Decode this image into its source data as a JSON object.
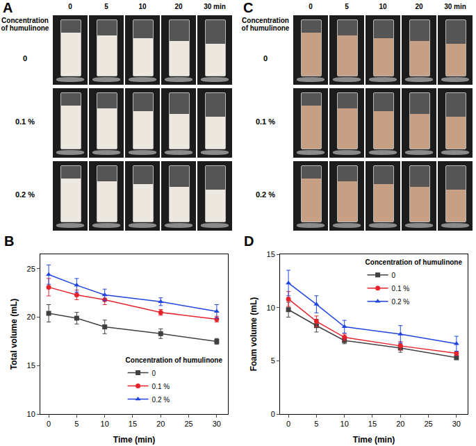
{
  "photo_panels": [
    {
      "letter": "A",
      "row_header": "Concentration of humulinone",
      "times": [
        "0",
        "5",
        "10",
        "20",
        "30 min"
      ],
      "rows": [
        "0",
        "0.1 %",
        "0.2 %"
      ]
    },
    {
      "letter": "C",
      "row_header": "Concentration of humulinone",
      "times": [
        "0",
        "5",
        "10",
        "20",
        "30 min"
      ],
      "rows": [
        "0",
        "0.1 %",
        "0.2 %"
      ]
    }
  ],
  "chart_data": [
    {
      "letter": "B",
      "type": "line",
      "x_label": "Time (min)",
      "y_label": "Total volume (mL)",
      "x": [
        0,
        5,
        10,
        20,
        30
      ],
      "xlim": [
        -1.5,
        32
      ],
      "xticks": [
        0,
        5,
        10,
        15,
        20,
        25,
        30
      ],
      "ylim": [
        10,
        26.5
      ],
      "yticks": [
        10,
        15,
        20,
        25
      ],
      "grid": false,
      "legend": "lower right",
      "legend_title": "Concentration of humulinone",
      "series": [
        {
          "name": "0",
          "color": "#404040",
          "marker": "square",
          "values": [
            20.4,
            19.9,
            19.0,
            18.3,
            17.5
          ],
          "errors": [
            0.9,
            0.6,
            0.7,
            0.5,
            0.3
          ]
        },
        {
          "name": "0.1 %",
          "color": "#e8222b",
          "marker": "circle",
          "values": [
            23.1,
            22.3,
            21.8,
            20.5,
            19.8
          ],
          "errors": [
            0.9,
            0.5,
            0.5,
            0.3,
            0.3
          ]
        },
        {
          "name": "0.2 %",
          "color": "#1f45e0",
          "marker": "triangle-up",
          "values": [
            24.4,
            23.3,
            22.3,
            21.6,
            20.6
          ],
          "errors": [
            1.0,
            0.7,
            0.6,
            0.4,
            0.7
          ]
        }
      ]
    },
    {
      "letter": "D",
      "type": "line",
      "x_label": "Time (min)",
      "y_label": "Foam volume (mL)",
      "x": [
        0,
        5,
        10,
        20,
        30
      ],
      "xlim": [
        -1.5,
        32
      ],
      "xticks": [
        0,
        5,
        10,
        15,
        20,
        25,
        30
      ],
      "ylim": [
        0,
        15
      ],
      "yticks": [
        0,
        5,
        10,
        15
      ],
      "grid": false,
      "legend": "upper right",
      "legend_title": "Concentration of humulinone",
      "series": [
        {
          "name": "0",
          "color": "#404040",
          "marker": "square",
          "values": [
            9.8,
            8.3,
            6.9,
            6.2,
            5.3
          ],
          "errors": [
            0.7,
            0.6,
            0.3,
            0.4,
            0.2
          ]
        },
        {
          "name": "0.1 %",
          "color": "#e8222b",
          "marker": "circle",
          "values": [
            10.8,
            8.7,
            7.2,
            6.4,
            5.7
          ],
          "errors": [
            0.7,
            0.5,
            0.3,
            0.4,
            0.2
          ]
        },
        {
          "name": "0.2 %",
          "color": "#1f45e0",
          "marker": "triangle-up",
          "values": [
            12.3,
            10.3,
            8.2,
            7.5,
            6.6
          ],
          "errors": [
            1.2,
            0.8,
            0.6,
            0.8,
            0.7
          ]
        }
      ]
    }
  ]
}
